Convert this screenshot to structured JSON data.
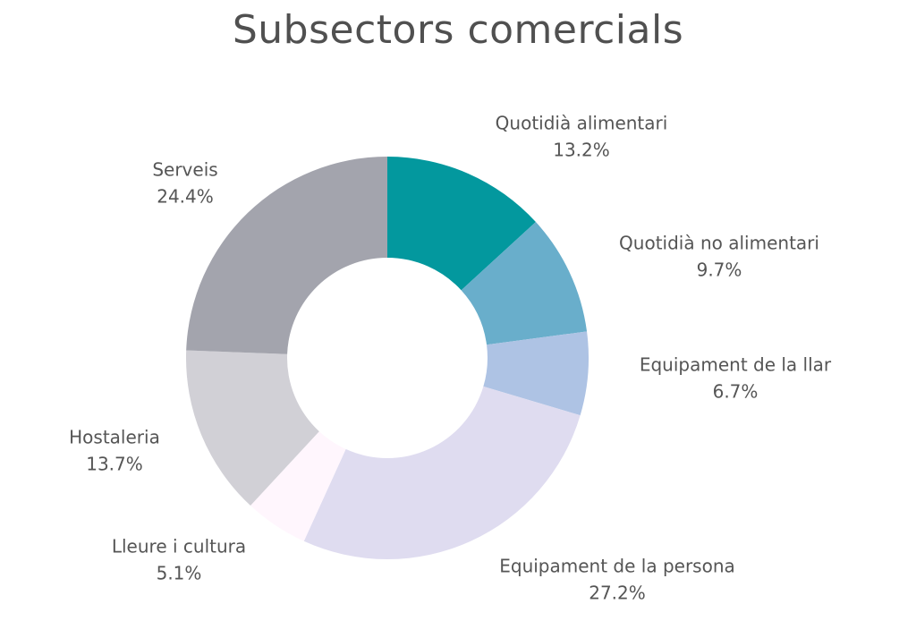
{
  "chart_data": {
    "type": "pie",
    "title": "Subsectors comercials",
    "categories": [
      "Quotidià alimentari",
      "Quotidià no alimentari",
      "Equipament de la llar",
      "Equipament de la persona",
      "Lleure i cultura",
      "Hostaleria",
      "Serveis"
    ],
    "values": [
      13.2,
      9.7,
      6.7,
      27.2,
      5.1,
      13.7,
      24.4
    ],
    "value_labels": [
      "13.2%",
      "9.7%",
      "6.7%",
      "27.2%",
      "5.1%",
      "13.7%",
      "24.4%"
    ],
    "colors": [
      "#03989e",
      "#69aecb",
      "#aec3e4",
      "#dfdcf0",
      "#fff6fd",
      "#d1d0d6",
      "#a3a4ad"
    ],
    "donut": true,
    "legend": "none"
  }
}
